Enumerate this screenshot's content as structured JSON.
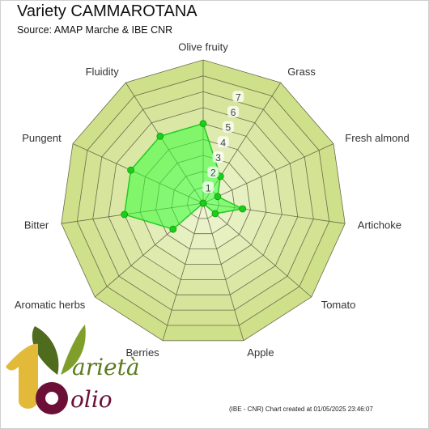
{
  "page": {
    "title": "Variety CAMMAROTANA",
    "subtitle": "Source: AMAP Marche & IBE CNR",
    "footer": "(IBE - CNR) Chart created at 01/05/2025 23:46:07",
    "logo_text": {
      "top": "arietà",
      "bottom": "olio"
    }
  },
  "chart_data": {
    "type": "radar",
    "title": "Variety CAMMAROTANA",
    "subtitle": "Source: AMAP Marche & IBE CNR",
    "axes": [
      "Olive fruity",
      "Grass",
      "Fresh almond",
      "Artichoke",
      "Tomato",
      "Apple",
      "Berries",
      "Aromatic herbs",
      "Bitter",
      "Pungent",
      "Fluidity"
    ],
    "ticks": [
      1,
      2,
      3,
      4,
      5,
      6,
      7
    ],
    "range": [
      0,
      9
    ],
    "series": [
      {
        "values": [
          5,
          2,
          1,
          2.5,
          1,
          0,
          0,
          2.5,
          5,
          5,
          5
        ]
      }
    ],
    "colors": {
      "ring_outer": "#cfe08a",
      "ring_inner": "#eef5d2",
      "grid": "#6b6b4a",
      "series_fill": "#33ff33",
      "series_line": "#22cc22",
      "marker": "#18d018"
    }
  }
}
